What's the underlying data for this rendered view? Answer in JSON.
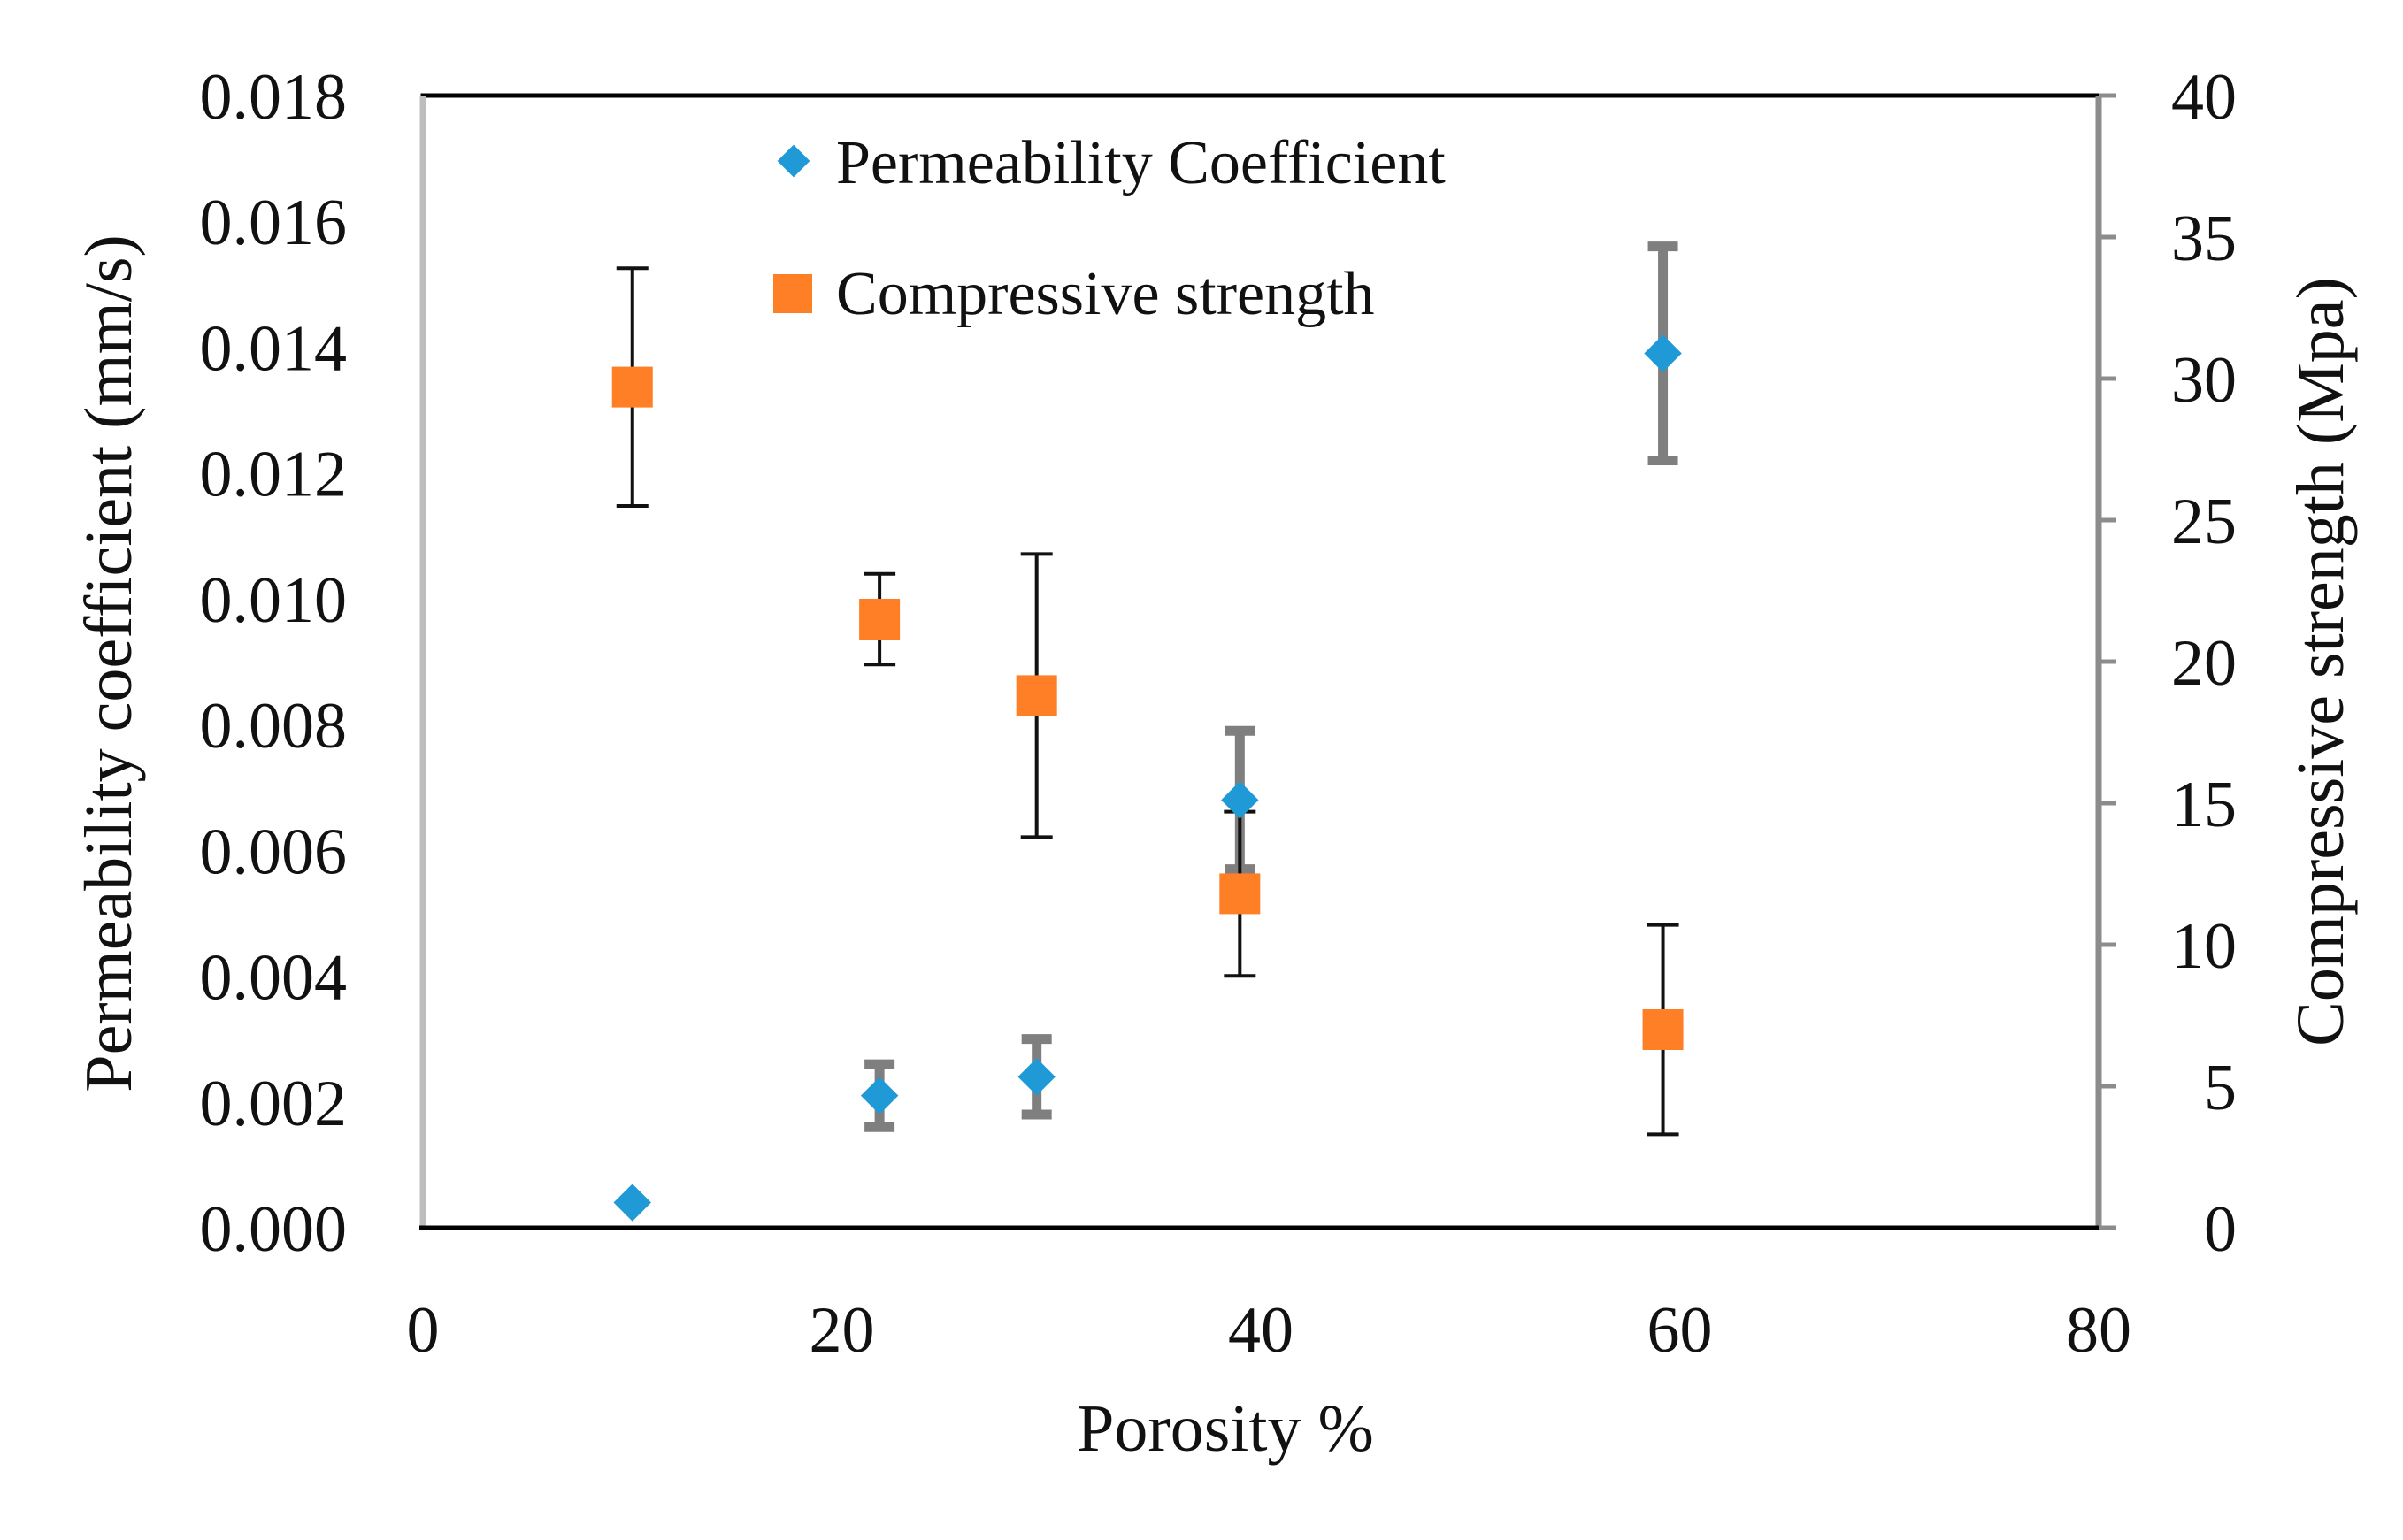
{
  "chart_data": {
    "type": "scatter",
    "xlabel": "Porosity  %",
    "ylabel_left": "Permeability coefficient (mm/s)",
    "ylabel_right": "Compressive strength (Mpa)",
    "xlim": [
      0,
      80
    ],
    "ylim_left": [
      0,
      0.018
    ],
    "ylim_right": [
      0,
      40
    ],
    "x_ticks": [
      "0",
      "20",
      "40",
      "60",
      "80"
    ],
    "y_left_ticks": [
      "0.000",
      "0.002",
      "0.004",
      "0.006",
      "0.008",
      "0.010",
      "0.012",
      "0.014",
      "0.016",
      "0.018"
    ],
    "y_right_ticks": [
      "0",
      "5",
      "10",
      "15",
      "20",
      "25",
      "30",
      "35",
      "40"
    ],
    "grid": false,
    "legend_position": "top-center",
    "series": [
      {
        "name": "Permeability Coefficient",
        "axis": "left",
        "marker": "diamond",
        "color": "#1f9ad6",
        "error_color": "#7f7f7f",
        "points": [
          {
            "x": 10,
            "y": 0.0004,
            "err": 0
          },
          {
            "x": 21.8,
            "y": 0.0021,
            "err": 0.0005
          },
          {
            "x": 29.3,
            "y": 0.0024,
            "err": 0.0006
          },
          {
            "x": 39,
            "y": 0.0068,
            "err": 0.0011
          },
          {
            "x": 59.2,
            "y": 0.0139,
            "err": 0.0017
          }
        ]
      },
      {
        "name": "Compressive strength",
        "axis": "right",
        "marker": "square",
        "color": "#ff7f27",
        "error_color": "#111111",
        "points": [
          {
            "x": 10,
            "y": 29.7,
            "err": 4.2
          },
          {
            "x": 21.8,
            "y": 21.5,
            "err": 1.6
          },
          {
            "x": 29.3,
            "y": 18.8,
            "err": 5.0
          },
          {
            "x": 39,
            "y": 11.8,
            "err": 2.9
          },
          {
            "x": 59.2,
            "y": 7.0,
            "err": 3.7
          }
        ]
      }
    ]
  }
}
